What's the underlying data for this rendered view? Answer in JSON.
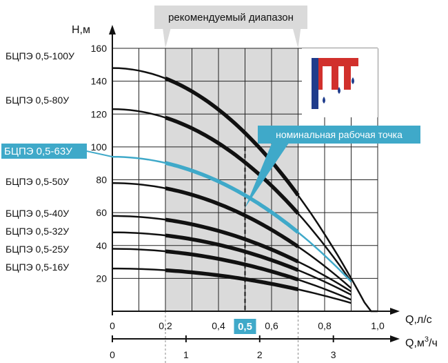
{
  "chart_data": {
    "type": "line",
    "ylabel": "Н,м",
    "xlabel": "Q,л/с",
    "x2label_base": "Q,м",
    "x2label_sup": "3",
    "x2label_tail": "/ч",
    "yticks": [
      20,
      40,
      60,
      80,
      100,
      120,
      140,
      160
    ],
    "xticks": [
      "0",
      "0,2",
      "0,4",
      "0,6",
      "0,8",
      "1,0"
    ],
    "xtick_values": [
      0,
      0.2,
      0.4,
      0.6,
      0.8,
      1.0
    ],
    "highlight_tick": "0,5",
    "highlight_tick_value": 0.5,
    "x2ticks": [
      "0",
      "1",
      "2",
      "3"
    ],
    "x2tick_values": [
      0,
      1,
      2,
      3
    ],
    "xlim": [
      0,
      1.0
    ],
    "ylim": [
      0,
      160
    ],
    "recommended_range": {
      "label": "рекомендуемый диапазон",
      "from": 0.2,
      "to": 0.7
    },
    "nominal_point": {
      "label": "номинальная рабочая точка",
      "x": 0.5,
      "y": 63
    },
    "highlight_color": "#3fa9c9",
    "series": [
      {
        "name": "БЦПЭ 0,5-100У",
        "y0": 148,
        "y09": 20,
        "end": 1.0,
        "highlight": false
      },
      {
        "name": "БЦПЭ 0,5-80У",
        "y0": 123,
        "y09": 18,
        "end": 0.9,
        "highlight": false
      },
      {
        "name": "БЦПЭ 0,5-63У",
        "y0": 94,
        "y09": 18,
        "end": 0.9,
        "highlight": true
      },
      {
        "name": "БЦПЭ 0,5-50У",
        "y0": 78,
        "y09": 14,
        "end": 0.9,
        "highlight": false
      },
      {
        "name": "БЦПЭ 0,5-40У",
        "y0": 58,
        "y09": 12,
        "end": 0.9,
        "highlight": false
      },
      {
        "name": "БЦПЭ 0,5-32У",
        "y0": 48,
        "y09": 10,
        "end": 0.9,
        "highlight": false
      },
      {
        "name": "БЦПЭ 0,5-25У",
        "y0": 38,
        "y09": 7,
        "end": 0.9,
        "highlight": false
      },
      {
        "name": "БЦПЭ 0,5-16У",
        "y0": 26,
        "y09": 5,
        "end": 0.9,
        "highlight": false
      }
    ]
  },
  "logo": {
    "name": "brand-logo"
  }
}
